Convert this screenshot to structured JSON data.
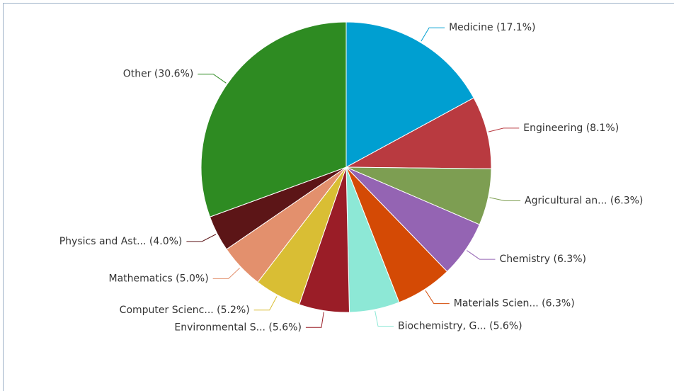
{
  "chart_data": {
    "type": "pie",
    "categories": [
      "Medicine (17.1%)",
      "Engineering (8.1%)",
      "Agricultural an... (6.3%)",
      "Chemistry (6.3%)",
      "Materials Scien... (6.3%)",
      "Biochemistry, G... (5.6%)",
      "Environmental S... (5.6%)",
      "Computer Scienc... (5.2%)",
      "Mathematics (5.0%)",
      "Physics and Ast... (4.0%)",
      "Other (30.6%)"
    ],
    "values": [
      17.1,
      8.1,
      6.3,
      6.3,
      6.3,
      5.6,
      5.6,
      5.2,
      5.0,
      4.0,
      30.6
    ],
    "colors": [
      "#009fd1",
      "#b93a40",
      "#7d9e52",
      "#9464b3",
      "#d44a05",
      "#8de8d6",
      "#9a1d27",
      "#d9be34",
      "#e3906d",
      "#5c1517",
      "#2e8b22"
    ]
  }
}
